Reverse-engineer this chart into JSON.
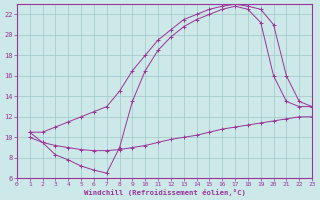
{
  "xlabel": "Windchill (Refroidissement éolien,°C)",
  "background_color": "#cde8e8",
  "grid_color": "#a0c8c8",
  "line_color": "#993399",
  "xlim": [
    0,
    23
  ],
  "ylim": [
    6,
    23
  ],
  "xticks": [
    0,
    1,
    2,
    3,
    4,
    5,
    6,
    7,
    8,
    9,
    10,
    11,
    12,
    13,
    14,
    15,
    16,
    17,
    18,
    19,
    20,
    21,
    22,
    23
  ],
  "yticks": [
    6,
    8,
    10,
    12,
    14,
    16,
    18,
    20,
    22
  ],
  "curve1_x": [
    1,
    2,
    3,
    4,
    5,
    6,
    7,
    8,
    9,
    10,
    11,
    12,
    13,
    14,
    15,
    16,
    17,
    18,
    19,
    20,
    21,
    22,
    23
  ],
  "curve1_y": [
    10.5,
    10.5,
    11.0,
    11.5,
    12.0,
    12.5,
    13.0,
    14.5,
    16.5,
    18.0,
    19.5,
    20.5,
    21.5,
    22.0,
    22.5,
    22.8,
    23.0,
    22.8,
    22.5,
    21.0,
    16.0,
    13.5,
    13.0
  ],
  "curve2_x": [
    1,
    2,
    3,
    4,
    5,
    6,
    7,
    8,
    9,
    10,
    11,
    12,
    13,
    14,
    15,
    16,
    17,
    18,
    19,
    20,
    21,
    22,
    23
  ],
  "curve2_y": [
    10.5,
    9.5,
    8.3,
    7.8,
    7.2,
    6.8,
    6.5,
    9.0,
    13.5,
    16.5,
    18.5,
    19.8,
    20.8,
    21.5,
    22.0,
    22.5,
    22.8,
    22.5,
    21.2,
    16.0,
    13.5,
    13.0,
    13.0
  ],
  "curve3_x": [
    1,
    2,
    3,
    4,
    5,
    6,
    7,
    8,
    9,
    10,
    11,
    12,
    13,
    14,
    15,
    16,
    17,
    18,
    19,
    20,
    21,
    22,
    23
  ],
  "curve3_y": [
    10.0,
    9.5,
    9.2,
    9.0,
    8.8,
    8.7,
    8.7,
    8.8,
    9.0,
    9.2,
    9.5,
    9.8,
    10.0,
    10.2,
    10.5,
    10.8,
    11.0,
    11.2,
    11.4,
    11.6,
    11.8,
    12.0,
    12.0
  ]
}
